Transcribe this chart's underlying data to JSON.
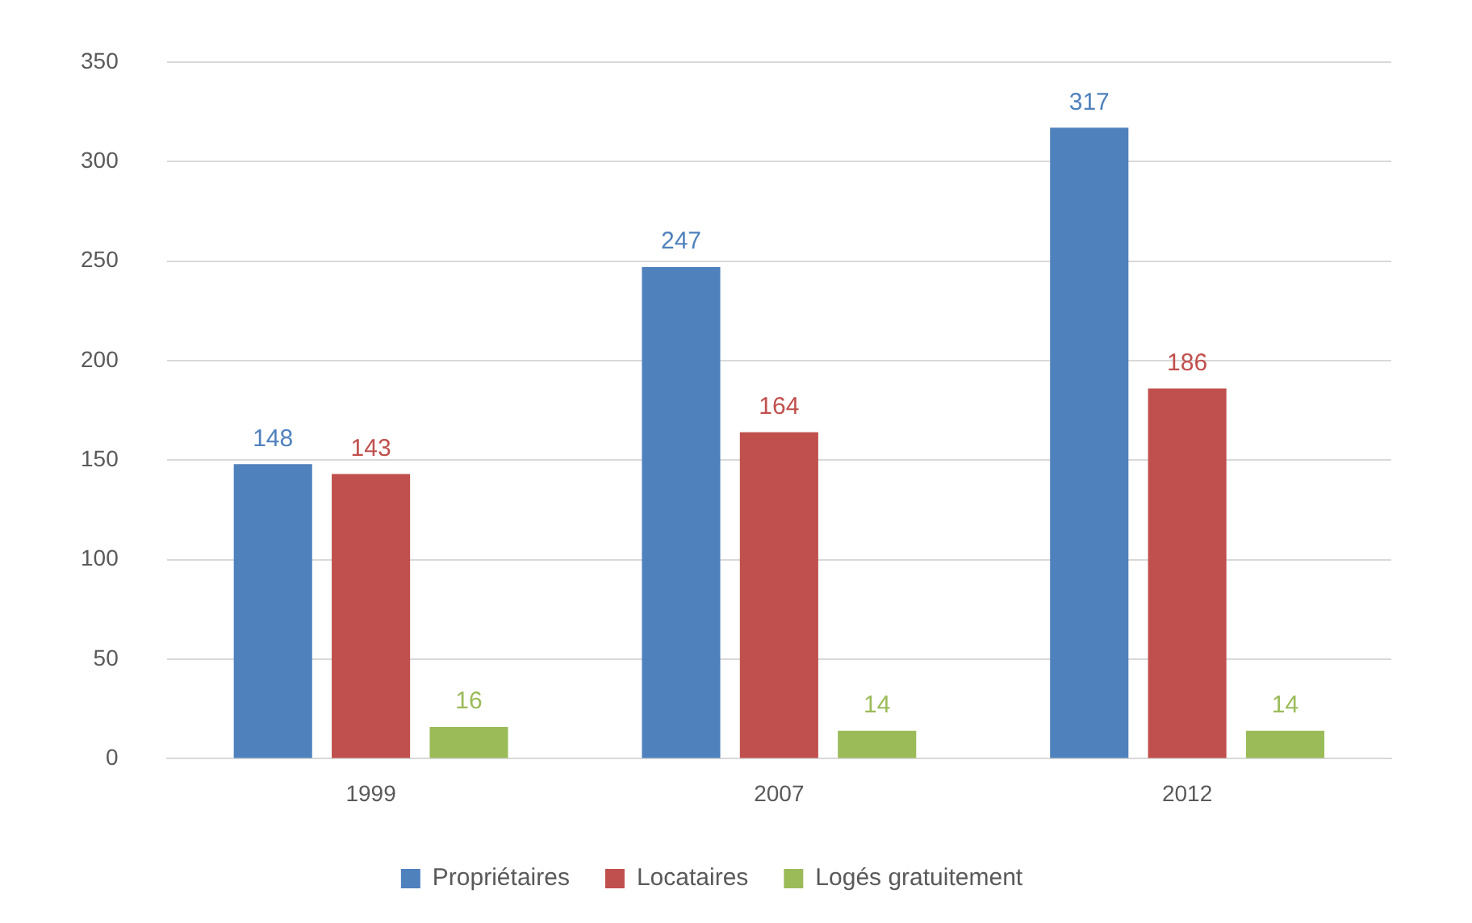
{
  "chart_data": {
    "type": "bar",
    "categories": [
      "1999",
      "2007",
      "2012"
    ],
    "series": [
      {
        "name": "Propriétaires",
        "color": "#4f81bd",
        "values": [
          148,
          247,
          317
        ]
      },
      {
        "name": "Locataires",
        "color": "#c0504d",
        "values": [
          143,
          164,
          186
        ]
      },
      {
        "name": "Logés gratuitement",
        "color": "#9bbb59",
        "values": [
          16,
          14,
          14
        ]
      }
    ],
    "ylim": [
      0,
      350
    ],
    "yticks": [
      0,
      50,
      100,
      150,
      200,
      250,
      300,
      350
    ],
    "grid": "y",
    "legend": "bottom",
    "data_labels": true
  }
}
